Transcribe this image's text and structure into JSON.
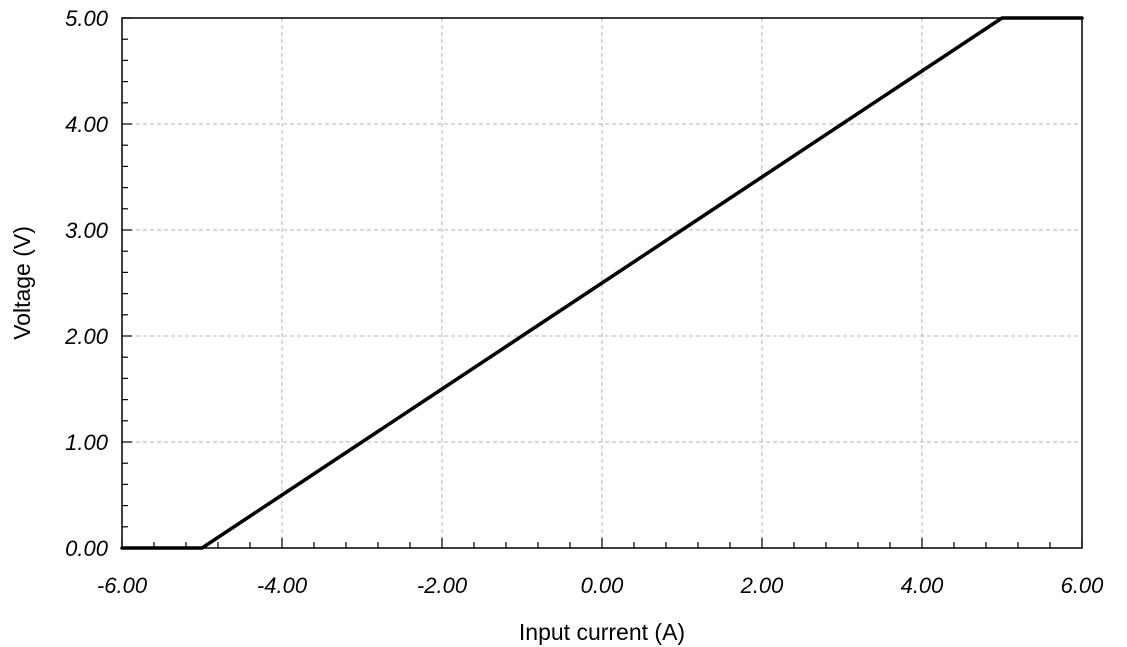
{
  "chart_data": {
    "type": "line",
    "title": "",
    "xlabel": "Input current (A)",
    "ylabel": "Voltage (V)",
    "xlim": [
      -6,
      6
    ],
    "ylim": [
      0,
      5
    ],
    "x_ticks": [
      -6,
      -4,
      -2,
      0,
      2,
      4,
      6
    ],
    "x_tick_labels": [
      "-6.00",
      "-4.00",
      "-2.00",
      "0.00",
      "2.00",
      "4.00",
      "6.00"
    ],
    "y_ticks": [
      0,
      1,
      2,
      3,
      4,
      5
    ],
    "y_tick_labels": [
      "0.00",
      "1.00",
      "2.00",
      "3.00",
      "4.00",
      "5.00"
    ],
    "x_minor_step": 0.4,
    "y_minor_step": 0.2,
    "grid": true,
    "legend": "none",
    "series": [
      {
        "color": "#000000",
        "points": [
          [
            -6.0,
            0.0
          ],
          [
            -5.0,
            0.0
          ],
          [
            -4.0,
            0.5
          ],
          [
            -3.0,
            1.0
          ],
          [
            -2.0,
            1.5
          ],
          [
            -1.0,
            2.0
          ],
          [
            0.0,
            2.5
          ],
          [
            1.0,
            3.0
          ],
          [
            2.0,
            3.5
          ],
          [
            3.0,
            4.0
          ],
          [
            4.0,
            4.5
          ],
          [
            5.0,
            5.0
          ],
          [
            6.0,
            5.0
          ]
        ]
      }
    ]
  }
}
